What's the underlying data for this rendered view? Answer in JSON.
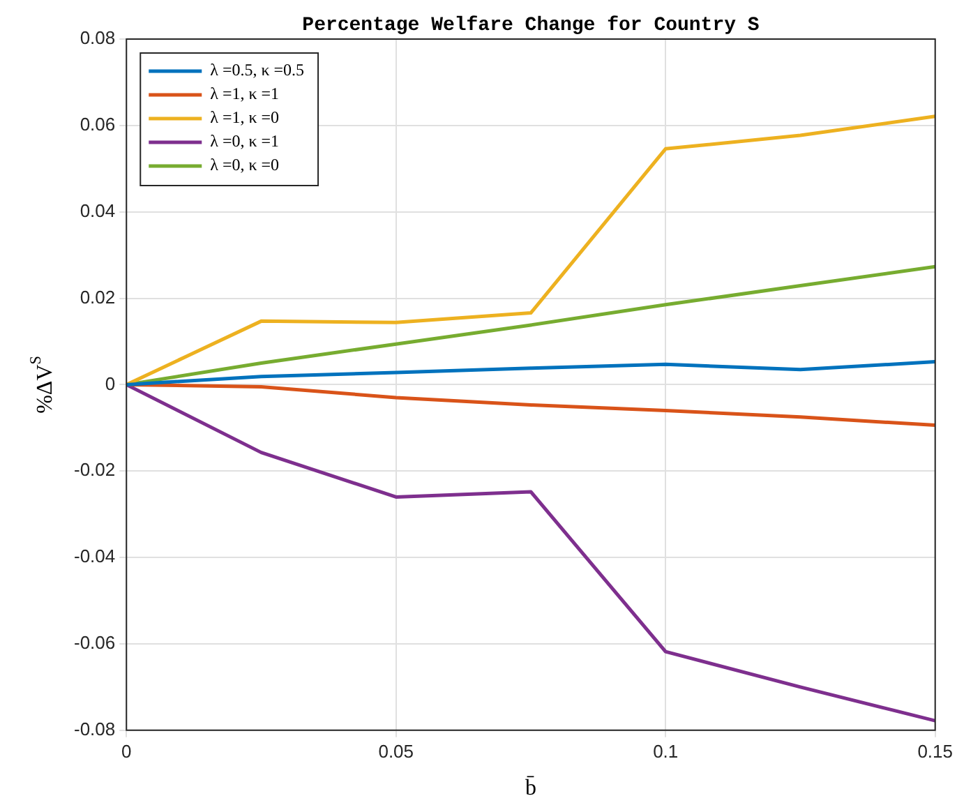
{
  "chart_data": {
    "type": "line",
    "title": "Percentage Welfare Change for Country S",
    "xlabel": "b̄",
    "ylabel": "%ΔV$^{S}$",
    "x": [
      0,
      0.025,
      0.05,
      0.075,
      0.1,
      0.125,
      0.15
    ],
    "series": [
      {
        "name": "λ =0.5, κ =0.5",
        "color": "#0072bd",
        "values": [
          0,
          0.0019,
          0.0028,
          0.0038,
          0.0047,
          0.0035,
          0.0053
        ]
      },
      {
        "name": "λ =1, κ =1",
        "color": "#d95319",
        "values": [
          0,
          -0.0005,
          -0.003,
          -0.0047,
          -0.006,
          -0.0075,
          -0.0094
        ]
      },
      {
        "name": "λ =1, κ =0",
        "color": "#edb120",
        "values": [
          0,
          0.0147,
          0.0144,
          0.0166,
          0.0546,
          0.0577,
          0.0621
        ]
      },
      {
        "name": "λ =0, κ =1",
        "color": "#7e2f8e",
        "values": [
          0,
          -0.0157,
          -0.026,
          -0.0248,
          -0.0618,
          -0.07,
          -0.0778
        ]
      },
      {
        "name": "λ =0, κ =0",
        "color": "#77ac30",
        "values": [
          0,
          0.005,
          0.0094,
          0.0138,
          0.0185,
          0.0229,
          0.0273
        ]
      }
    ],
    "xlim": [
      0,
      0.15
    ],
    "xticks": [
      0,
      0.05,
      0.1,
      0.15
    ],
    "ylim": [
      -0.08,
      0.08
    ],
    "yticks": [
      -0.08,
      -0.06,
      -0.04,
      -0.02,
      0,
      0.02,
      0.04,
      0.06,
      0.08
    ],
    "grid": true,
    "legend": "top left",
    "marker": "none",
    "line_style": "solid"
  }
}
